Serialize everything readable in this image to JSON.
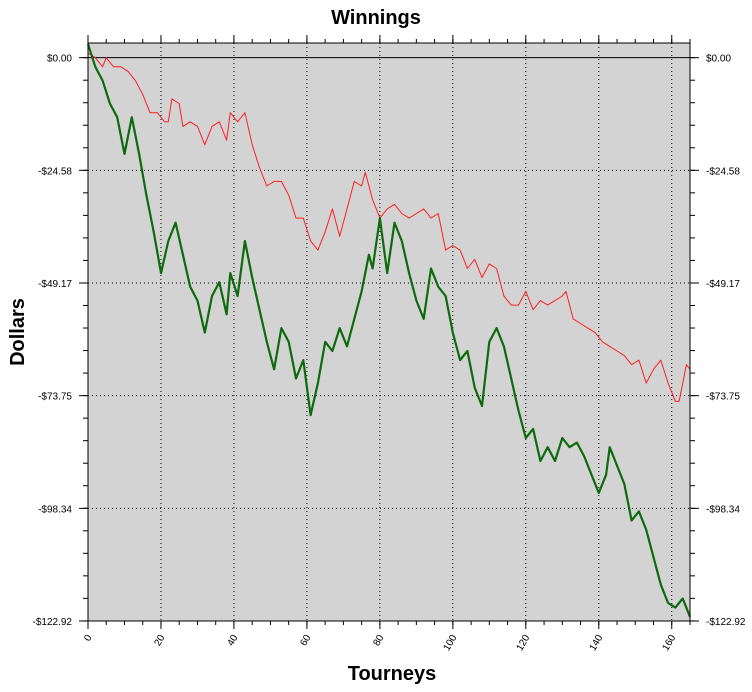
{
  "chart_data": {
    "type": "line",
    "title": "Winnings",
    "xlabel": "Tourneys",
    "ylabel": "Dollars",
    "xlim": [
      0,
      165
    ],
    "ylim": [
      -122.92,
      3.2
    ],
    "x_ticks": [
      0,
      20,
      40,
      60,
      80,
      100,
      120,
      140,
      160
    ],
    "x_tick_labels": [
      "0",
      "20",
      "40",
      "60",
      "80",
      "100",
      "120",
      "140",
      "160"
    ],
    "y_ticks": [
      0,
      -24.58,
      -49.17,
      -73.75,
      -98.34,
      -122.92
    ],
    "y_tick_labels": [
      "$0.00",
      "-$24.58",
      "-$49.17",
      "-$73.75",
      "-$98.34",
      "-$122.92"
    ],
    "grid": true,
    "background_color": "#d3d3d3",
    "series": [
      {
        "color": "#ff2020",
        "values": [
          [
            0,
            1
          ],
          [
            2,
            0
          ],
          [
            4,
            -2
          ],
          [
            5,
            0
          ],
          [
            7,
            -2
          ],
          [
            9,
            -2
          ],
          [
            11,
            -3
          ],
          [
            13,
            -5
          ],
          [
            15,
            -8
          ],
          [
            17,
            -12
          ],
          [
            19,
            -12
          ],
          [
            21,
            -14
          ],
          [
            22,
            -14
          ],
          [
            23,
            -9
          ],
          [
            25,
            -10
          ],
          [
            26,
            -15
          ],
          [
            28,
            -14
          ],
          [
            30,
            -15
          ],
          [
            32,
            -19
          ],
          [
            34,
            -15
          ],
          [
            36,
            -14
          ],
          [
            38,
            -18
          ],
          [
            39,
            -12
          ],
          [
            41,
            -14
          ],
          [
            43,
            -12
          ],
          [
            45,
            -19
          ],
          [
            47,
            -24
          ],
          [
            49,
            -28
          ],
          [
            51,
            -27
          ],
          [
            53,
            -27
          ],
          [
            55,
            -30
          ],
          [
            57,
            -35
          ],
          [
            59,
            -35
          ],
          [
            61,
            -40
          ],
          [
            63,
            -42
          ],
          [
            65,
            -38
          ],
          [
            67,
            -33
          ],
          [
            69,
            -39
          ],
          [
            71,
            -33
          ],
          [
            73,
            -27
          ],
          [
            75,
            -28
          ],
          [
            76,
            -25
          ],
          [
            78,
            -31
          ],
          [
            80,
            -35
          ],
          [
            82,
            -33
          ],
          [
            84,
            -32
          ],
          [
            86,
            -34
          ],
          [
            88,
            -35
          ],
          [
            90,
            -34
          ],
          [
            92,
            -33
          ],
          [
            94,
            -35
          ],
          [
            96,
            -34
          ],
          [
            98,
            -42
          ],
          [
            100,
            -41
          ],
          [
            102,
            -42
          ],
          [
            104,
            -46
          ],
          [
            106,
            -44
          ],
          [
            108,
            -48
          ],
          [
            110,
            -45
          ],
          [
            112,
            -46
          ],
          [
            114,
            -52
          ],
          [
            116,
            -54
          ],
          [
            118,
            -54
          ],
          [
            120,
            -51
          ],
          [
            122,
            -55
          ],
          [
            124,
            -53
          ],
          [
            126,
            -54
          ],
          [
            128,
            -53
          ],
          [
            130,
            -52
          ],
          [
            131,
            -51
          ],
          [
            133,
            -57
          ],
          [
            135,
            -58
          ],
          [
            137,
            -59
          ],
          [
            139,
            -60
          ],
          [
            141,
            -62
          ],
          [
            143,
            -63
          ],
          [
            145,
            -64
          ],
          [
            147,
            -65
          ],
          [
            149,
            -67
          ],
          [
            151,
            -66
          ],
          [
            153,
            -71
          ],
          [
            155,
            -68
          ],
          [
            157,
            -66
          ],
          [
            159,
            -71
          ],
          [
            161,
            -75
          ],
          [
            162,
            -75
          ],
          [
            164,
            -67
          ],
          [
            165,
            -68
          ]
        ]
      },
      {
        "color": "#0d6b0d",
        "values": [
          [
            0,
            3
          ],
          [
            2,
            -2
          ],
          [
            4,
            -5
          ],
          [
            6,
            -10
          ],
          [
            8,
            -13
          ],
          [
            10,
            -21
          ],
          [
            12,
            -13
          ],
          [
            14,
            -21
          ],
          [
            16,
            -30
          ],
          [
            18,
            -38
          ],
          [
            20,
            -47
          ],
          [
            22,
            -40
          ],
          [
            24,
            -36
          ],
          [
            26,
            -43
          ],
          [
            28,
            -50
          ],
          [
            30,
            -53
          ],
          [
            32,
            -60
          ],
          [
            34,
            -52
          ],
          [
            36,
            -49
          ],
          [
            38,
            -56
          ],
          [
            39,
            -47
          ],
          [
            41,
            -52
          ],
          [
            43,
            -40
          ],
          [
            45,
            -48
          ],
          [
            47,
            -55
          ],
          [
            49,
            -62
          ],
          [
            51,
            -68
          ],
          [
            53,
            -59
          ],
          [
            55,
            -62
          ],
          [
            57,
            -70
          ],
          [
            59,
            -66
          ],
          [
            61,
            -78
          ],
          [
            63,
            -71
          ],
          [
            65,
            -62
          ],
          [
            67,
            -64
          ],
          [
            69,
            -59
          ],
          [
            71,
            -63
          ],
          [
            73,
            -57
          ],
          [
            75,
            -51
          ],
          [
            77,
            -43
          ],
          [
            78,
            -46
          ],
          [
            80,
            -35
          ],
          [
            82,
            -47
          ],
          [
            84,
            -36
          ],
          [
            86,
            -40
          ],
          [
            88,
            -47
          ],
          [
            90,
            -53
          ],
          [
            92,
            -57
          ],
          [
            94,
            -46
          ],
          [
            96,
            -50
          ],
          [
            98,
            -52
          ],
          [
            100,
            -60
          ],
          [
            102,
            -66
          ],
          [
            104,
            -64
          ],
          [
            106,
            -72
          ],
          [
            108,
            -76
          ],
          [
            110,
            -62
          ],
          [
            112,
            -59
          ],
          [
            114,
            -63
          ],
          [
            116,
            -70
          ],
          [
            118,
            -77
          ],
          [
            120,
            -83
          ],
          [
            122,
            -81
          ],
          [
            124,
            -88
          ],
          [
            126,
            -85
          ],
          [
            128,
            -88
          ],
          [
            130,
            -83
          ],
          [
            132,
            -85
          ],
          [
            134,
            -84
          ],
          [
            136,
            -87
          ],
          [
            138,
            -91
          ],
          [
            140,
            -95
          ],
          [
            142,
            -91
          ],
          [
            143,
            -85
          ],
          [
            145,
            -89
          ],
          [
            147,
            -93
          ],
          [
            149,
            -101
          ],
          [
            151,
            -99
          ],
          [
            153,
            -103
          ],
          [
            155,
            -109
          ],
          [
            157,
            -115
          ],
          [
            159,
            -119
          ],
          [
            161,
            -120
          ],
          [
            163,
            -118
          ],
          [
            165,
            -122
          ]
        ]
      }
    ]
  }
}
